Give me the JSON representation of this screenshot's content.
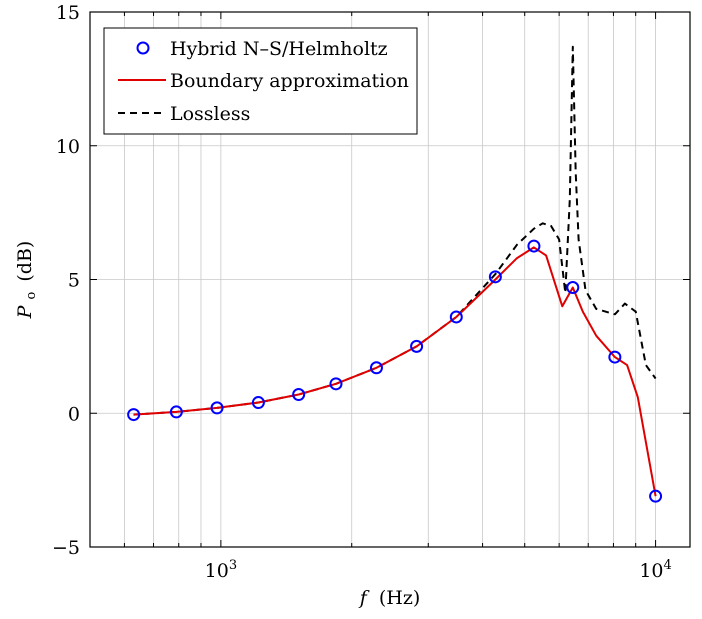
{
  "chart_data": {
    "type": "line",
    "x_scale": "log",
    "xlim": [
      500,
      12000
    ],
    "ylim": [
      -5,
      15
    ],
    "grid": true,
    "xlabel_var": "f",
    "xlabel_unit": "(Hz)",
    "ylabel_var": "P",
    "ylabel_sub": "o",
    "ylabel_unit": "(dB)",
    "x_ticks": [
      {
        "value": 1000,
        "base": "10",
        "exp": "3"
      },
      {
        "value": 10000,
        "base": "10",
        "exp": "4"
      }
    ],
    "y_ticks": [
      {
        "value": -5,
        "label": "−5"
      },
      {
        "value": 0,
        "label": "0"
      },
      {
        "value": 5,
        "label": "5"
      },
      {
        "value": 10,
        "label": "10"
      },
      {
        "value": 15,
        "label": "15"
      }
    ],
    "legend_position": "top-left",
    "series": [
      {
        "name": "Hybrid N–S/Helmholtz",
        "style": "markers",
        "color": "#0000ff",
        "x": [
          630,
          790,
          980,
          1220,
          1510,
          1840,
          2280,
          2820,
          3480,
          4280,
          5250,
          6450,
          8060,
          10000
        ],
        "y": [
          -0.05,
          0.05,
          0.2,
          0.4,
          0.7,
          1.1,
          1.7,
          2.5,
          3.6,
          5.1,
          6.25,
          4.7,
          2.1,
          -3.1
        ]
      },
      {
        "name": "Boundary approximation",
        "style": "solid",
        "color": "#e00000",
        "x": [
          630,
          790,
          980,
          1220,
          1510,
          1840,
          2280,
          2820,
          3480,
          4280,
          4800,
          5250,
          5600,
          6100,
          6450,
          6800,
          7300,
          8060,
          8600,
          9100,
          10000
        ],
        "y": [
          -0.05,
          0.05,
          0.2,
          0.4,
          0.7,
          1.1,
          1.7,
          2.5,
          3.6,
          5.0,
          5.8,
          6.2,
          5.9,
          4.0,
          4.7,
          3.8,
          2.9,
          2.1,
          1.8,
          0.6,
          -3.1
        ]
      },
      {
        "name": "Lossless",
        "style": "dashed",
        "color": "#000000",
        "x": [
          630,
          790,
          980,
          1220,
          1510,
          1840,
          2280,
          2820,
          3480,
          4280,
          4800,
          5250,
          5500,
          5750,
          6000,
          6200,
          6350,
          6450,
          6550,
          6650,
          6900,
          7300,
          8060,
          8500,
          9000,
          9500,
          10000
        ],
        "y": [
          -0.05,
          0.05,
          0.2,
          0.4,
          0.7,
          1.1,
          1.7,
          2.5,
          3.6,
          5.2,
          6.3,
          6.9,
          7.1,
          7.0,
          6.5,
          4.5,
          8.0,
          13.7,
          9.0,
          6.5,
          4.6,
          3.9,
          3.7,
          4.1,
          3.8,
          1.8,
          1.3
        ]
      }
    ]
  }
}
